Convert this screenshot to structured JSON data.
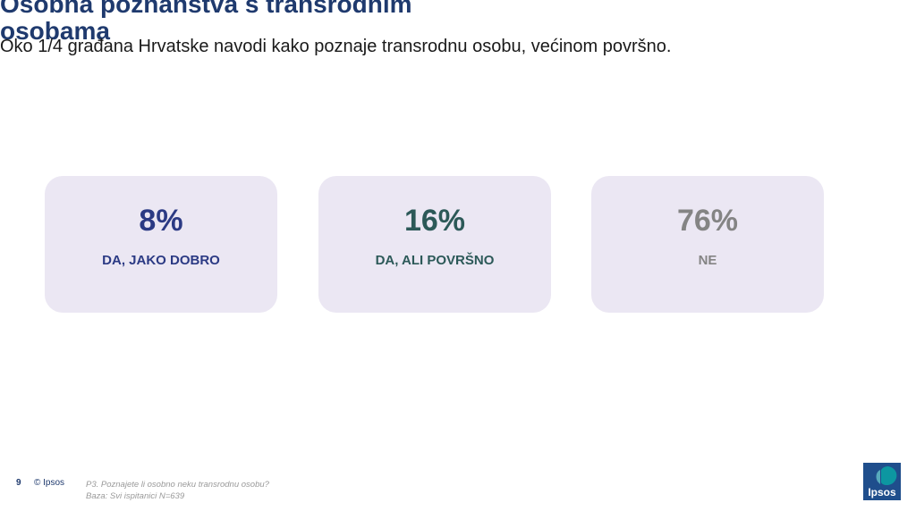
{
  "slide": {
    "title": "Osobna poznanstva s transrodnim osobama",
    "subtitle": "Oko 1/4 građana Hrvatske navodi kako poznaje transrodnu osobu, većinom površno."
  },
  "cards": [
    {
      "value": "8%",
      "label": "DA, JAKO DOBRO",
      "color": "#2b3a84"
    },
    {
      "value": "16%",
      "label": "DA, ALI POVRŠNO",
      "color": "#2c5958"
    },
    {
      "value": "76%",
      "label": "NE",
      "color": "#848484"
    }
  ],
  "footer": {
    "page_number": "9",
    "copyright": "© Ipsos",
    "question": "P3. Poznajete li osobno neku transrodnu osobu?",
    "base": "Baza: Svi ispitanici N=639"
  },
  "logo": {
    "text": "Ipsos",
    "colors": {
      "primary": "#1f4e8c",
      "accent": "#0aa5a5"
    }
  }
}
